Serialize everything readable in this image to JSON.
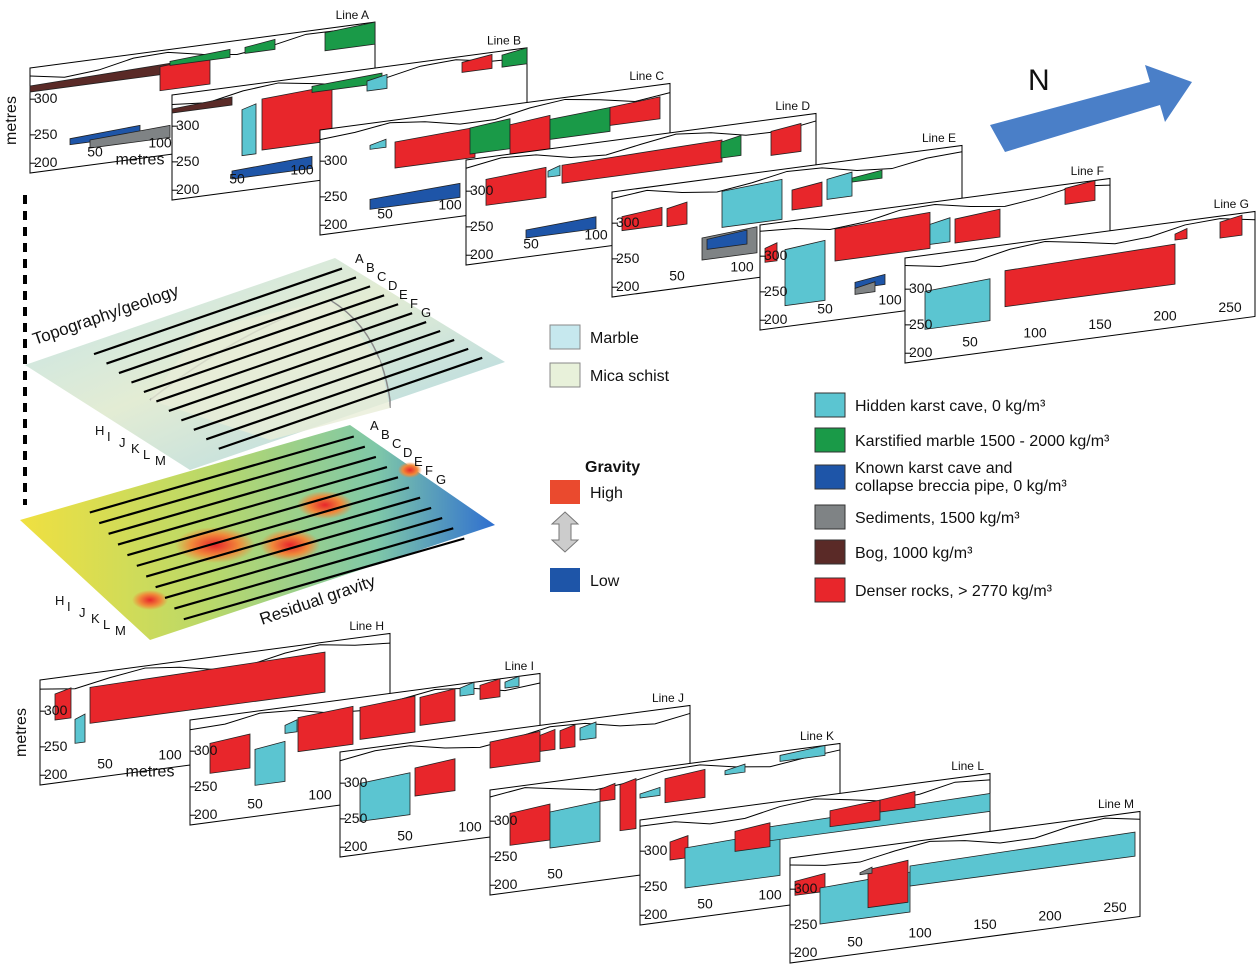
{
  "north": "N",
  "panels": [
    {
      "label": "Line A",
      "yticks": [
        300,
        250,
        200
      ],
      "xticks": [
        50,
        100
      ],
      "ylabel": "metres",
      "xlabel": "metres"
    },
    {
      "label": "Line B",
      "yticks": [
        300,
        250,
        200
      ],
      "xticks": [
        50,
        100
      ]
    },
    {
      "label": "Line C",
      "yticks": [
        300,
        250,
        200
      ],
      "xticks": [
        50,
        100
      ]
    },
    {
      "label": "Line D",
      "yticks": [
        300,
        250,
        200
      ],
      "xticks": [
        50,
        100
      ]
    },
    {
      "label": "Line E",
      "yticks": [
        300,
        250,
        200
      ],
      "xticks": [
        50,
        100
      ]
    },
    {
      "label": "Line F",
      "yticks": [
        300,
        250,
        200
      ],
      "xticks": [
        50,
        100
      ]
    },
    {
      "label": "Line G",
      "yticks": [
        300,
        250,
        200
      ],
      "xticks": [
        50,
        100,
        150,
        200,
        250
      ]
    },
    {
      "label": "Line H",
      "yticks": [
        300,
        250,
        200
      ],
      "xticks": [
        50,
        100
      ],
      "ylabel": "metres",
      "xlabel": "metres"
    },
    {
      "label": "Line I",
      "yticks": [
        300,
        250,
        200
      ],
      "xticks": [
        50,
        100
      ]
    },
    {
      "label": "Line J",
      "yticks": [
        300,
        250,
        200
      ],
      "xticks": [
        50,
        100
      ]
    },
    {
      "label": "Line K",
      "yticks": [
        300,
        250,
        200
      ],
      "xticks": [
        50
      ]
    },
    {
      "label": "Line L",
      "yticks": [
        300,
        250,
        200
      ],
      "xticks": [
        50,
        100
      ]
    },
    {
      "label": "Line M",
      "yticks": [
        300,
        250,
        200
      ],
      "xticks": [
        50,
        100,
        150,
        200,
        250
      ]
    }
  ],
  "maps": [
    {
      "title": "Topography/geology",
      "top_letters": [
        "A",
        "B",
        "C",
        "D",
        "E",
        "F",
        "G"
      ],
      "bottom_letters": [
        "H",
        "I",
        "J",
        "K",
        "L",
        "M"
      ]
    },
    {
      "title": "Residual gravity",
      "top_letters": [
        "A",
        "B",
        "C",
        "D",
        "E",
        "F",
        "G"
      ],
      "bottom_letters": [
        "H",
        "I",
        "J",
        "K",
        "L",
        "M"
      ]
    }
  ],
  "map_legend": [
    "Marble",
    "Mica schist"
  ],
  "gravity_legend": {
    "title": "Gravity",
    "high": "High",
    "low": "Low"
  },
  "legend": [
    [
      "Hidden karst cave, 0 kg/m³"
    ],
    [
      "Karstified marble 1500 - 2000 kg/m³"
    ],
    [
      "Known karst cave and",
      "collapse breccia pipe, 0 kg/m³"
    ],
    [
      "Sediments, 1500 kg/m³"
    ],
    [
      "Bog, 1000 kg/m³"
    ],
    [
      "Denser rocks, > 2770 kg/m³"
    ]
  ]
}
